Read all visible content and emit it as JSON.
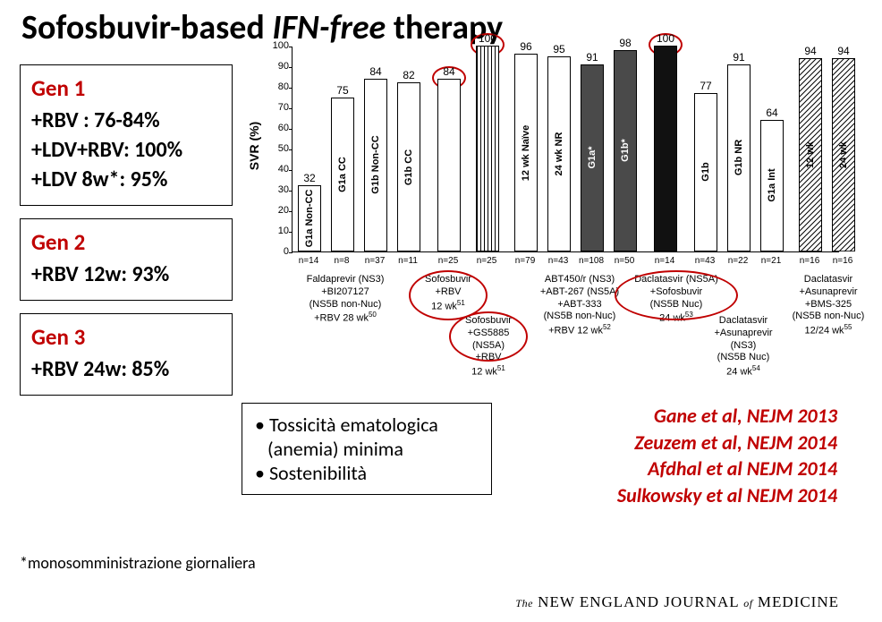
{
  "title": {
    "pre": "Sofosbuvir-based ",
    "ital": "IFN-free",
    "post": " therapy"
  },
  "boxes": {
    "gen1": {
      "label": "Gen 1",
      "lines": [
        "+RBV : 76-84%",
        "+LDV+RBV: 100%",
        "+LDV 8w*: 95%"
      ]
    },
    "gen2": {
      "label": "Gen 2",
      "lines": [
        "+RBV 12w: 93%"
      ]
    },
    "gen3": {
      "label": "Gen 3",
      "lines": [
        "+RBV 24w: 85%"
      ]
    }
  },
  "footnote": "*monosomministrazione giornaliera",
  "bullets": {
    "b1": "Tossicità ematologica",
    "b1b": "(anemia) minima",
    "b2": "Sostenibilità"
  },
  "citations": [
    "Gane et al, NEJM 2013",
    "Zeuzem et al, NEJM 2014",
    "Afdhal et al NEJM 2014",
    "Sulkowsky et al NEJM 2014"
  ],
  "journal_prefix": "The",
  "journal_main": " NEW ENGLAND JOURNAL ",
  "journal_of": "of",
  "journal_end": " MEDICINE",
  "chart": {
    "ylabel": "SVR (%)",
    "ylim": [
      0,
      100
    ],
    "yticks": [
      0,
      10,
      20,
      30,
      40,
      50,
      60,
      70,
      80,
      90,
      100
    ],
    "bars": [
      {
        "v": 32,
        "top": "32",
        "inside": "G1a Non-CC",
        "fill": "#ffffff",
        "n": "n=14",
        "group": 0
      },
      {
        "v": 75,
        "top": "75",
        "inside": "G1a CC",
        "fill": "#ffffff",
        "n": "n=8",
        "group": 0
      },
      {
        "v": 84,
        "top": "84",
        "inside": "G1b Non-CC",
        "fill": "#ffffff",
        "n": "n=37",
        "group": 0
      },
      {
        "v": 82,
        "top": "82",
        "inside": "G1b CC",
        "fill": "#ffffff",
        "n": "n=11",
        "group": 0
      },
      {
        "v": 84,
        "top": "84",
        "inside": "",
        "fill": "#ffffff",
        "n": "n=25",
        "group": 1,
        "circleTop": true
      },
      {
        "v": 100,
        "top": "100",
        "inside": "",
        "fill": "vstripe",
        "n": "n=25",
        "group": 2,
        "circleTop": true
      },
      {
        "v": 96,
        "top": "96",
        "inside": "12 wk Naïve",
        "fill": "#ffffff",
        "n": "n=79",
        "group": 3
      },
      {
        "v": 95,
        "top": "95",
        "inside": "24 wk NR",
        "fill": "#ffffff",
        "n": "n=43",
        "group": 3
      },
      {
        "v": 91,
        "top": "91",
        "inside": "G1a*",
        "fill": "#4a4a4a",
        "light": true,
        "n": "n=108",
        "group": 3
      },
      {
        "v": 98,
        "top": "98",
        "inside": "G1b*",
        "fill": "#4a4a4a",
        "light": true,
        "n": "n=50",
        "group": 3
      },
      {
        "v": 100,
        "top": "100",
        "inside": "",
        "fill": "#111111",
        "n": "n=14",
        "group": 4,
        "circleTop": true
      },
      {
        "v": 77,
        "top": "77",
        "inside": "G1b",
        "fill": "#ffffff",
        "n": "n=43",
        "group": 5
      },
      {
        "v": 91,
        "top": "91",
        "inside": "G1b NR",
        "fill": "#ffffff",
        "n": "n=22",
        "group": 5
      },
      {
        "v": 64,
        "top": "64",
        "inside": "G1a Int",
        "fill": "#ffffff",
        "n": "n=21",
        "group": 5
      },
      {
        "v": 94,
        "top": "94",
        "inside": "12 wk",
        "fill": "diag",
        "n": "n=16",
        "group": 6
      },
      {
        "v": 94,
        "top": "94",
        "inside": "24 wk",
        "fill": "diag",
        "n": "n=16",
        "group": 6
      }
    ],
    "bar_x_start": 6,
    "bar_pitch": 37,
    "group_gaps": {
      "1": 8,
      "2": 6,
      "3": 6,
      "4": 8,
      "5": 8,
      "6": 6
    },
    "groups": [
      {
        "label": "Faldaprevir (NS3)\n+BI207127\n(NS5B non-Nuc)\n+RBV 28 wk",
        "sup": "50",
        "x": 60,
        "w": 140
      },
      {
        "label": "Sofosbuvir\n+RBV\n12 wk",
        "sup": "51",
        "x": 175,
        "w": 80,
        "circle": true
      },
      {
        "label": "Sofosbuvir\n+GS5885\n(NS5A)\n+RBV\n12 wk",
        "sup": "51",
        "x": 220,
        "w": 80,
        "yoff": 46,
        "circle": true
      },
      {
        "label": "ABT450/r (NS3)\n+ABT-267 (NS5A)\n+ABT-333\n(NS5B non-Nuc)\n+RBV 12 wk",
        "sup": "52",
        "x": 322,
        "w": 150
      },
      {
        "label": "Daclatasvir (NS5A)\n+Sofosbuvir\n(NS5B Nuc)\n24 wk",
        "sup": "53",
        "x": 430,
        "w": 130,
        "circle": true
      },
      {
        "label": "Daclatasvir\n+Asunaprevir\n(NS3)\n(NS5B Nuc)\n24 wk",
        "sup": "54",
        "x": 505,
        "w": 110,
        "yoff": 46
      },
      {
        "label": "Daclatasvir\n+Asunaprevir\n+BMS-325\n(NS5B non-Nuc)\n12/24 wk",
        "sup": "55",
        "x": 600,
        "w": 120
      }
    ]
  },
  "colors": {
    "accent": "#c00000",
    "black": "#000",
    "dark": "#4a4a4a"
  }
}
